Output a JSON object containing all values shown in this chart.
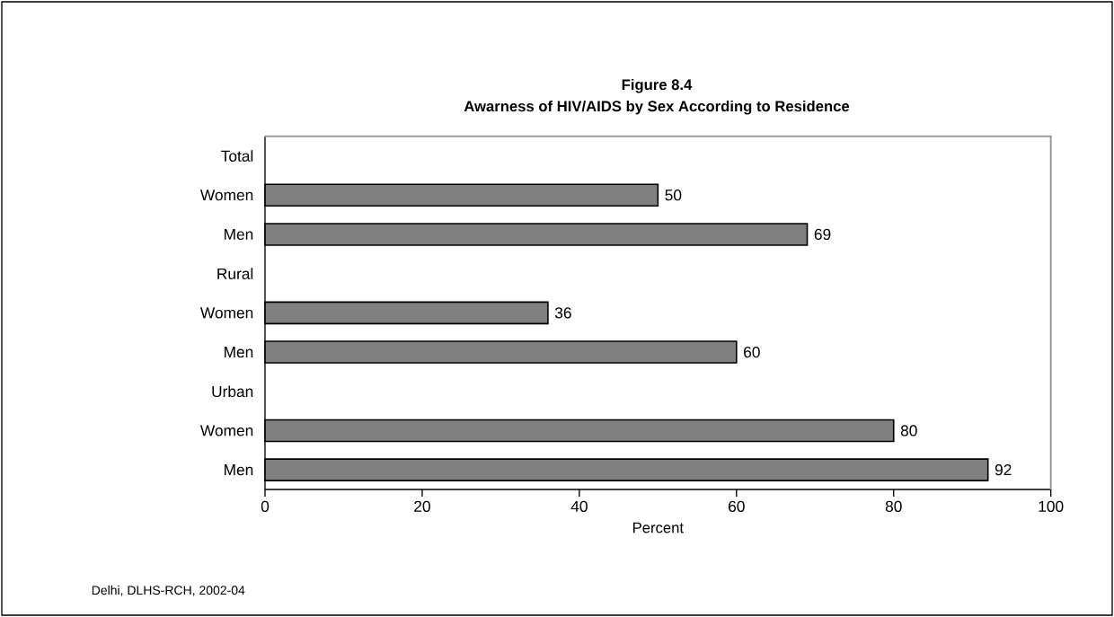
{
  "chart_data": {
    "type": "bar",
    "orientation": "horizontal",
    "title": "Figure 8.4",
    "subtitle": "Awarness of HIV/AIDS by Sex According to Residence",
    "xlabel": "Percent",
    "categories": [
      "Total",
      "Women",
      "Men",
      "Rural",
      "Women",
      "Men",
      "Urban",
      "Women",
      "Men"
    ],
    "values": [
      null,
      50,
      69,
      null,
      36,
      60,
      null,
      80,
      92
    ],
    "color": "#808080",
    "xlim": [
      0,
      100
    ],
    "xticks": [
      0,
      20,
      40,
      60,
      80,
      100
    ],
    "data_labels": true,
    "grid": false,
    "annotations": [
      "Delhi, DLHS-RCH, 2002-04"
    ]
  }
}
